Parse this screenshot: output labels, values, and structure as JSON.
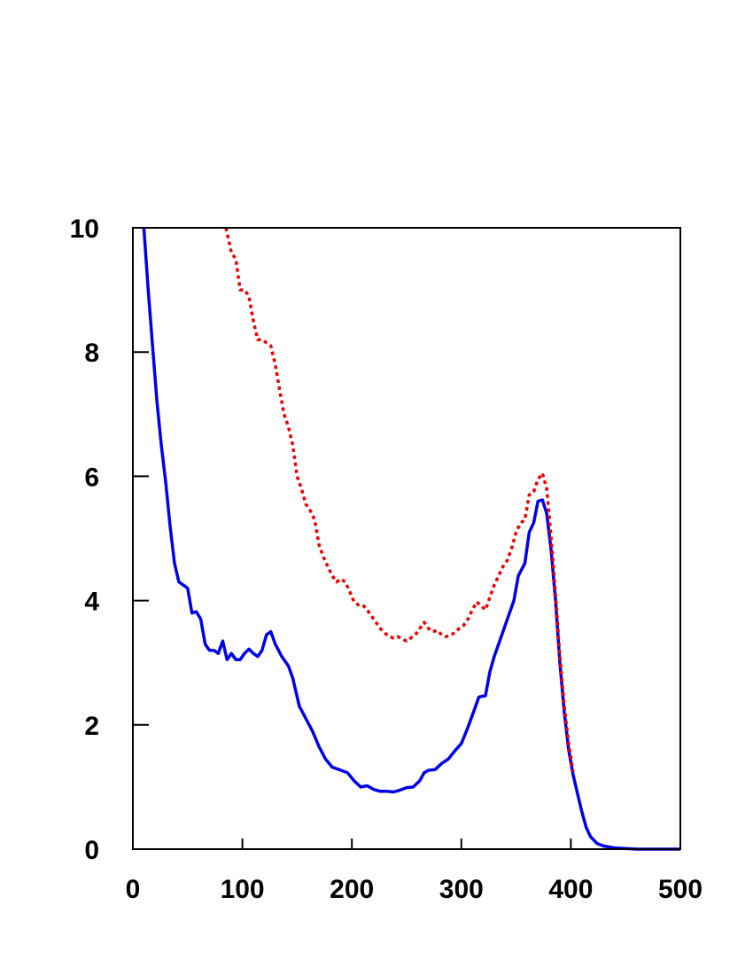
{
  "chart_data": {
    "type": "line",
    "title": "",
    "xlabel": "",
    "ylabel": "",
    "xlim": [
      0,
      500
    ],
    "ylim": [
      0,
      10
    ],
    "x_ticks": [
      0,
      100,
      200,
      300,
      400,
      500
    ],
    "y_ticks": [
      0,
      2,
      4,
      6,
      8,
      10
    ],
    "x_tick_labels": [
      "0",
      "100",
      "200",
      "300",
      "400",
      "500"
    ],
    "y_tick_labels": [
      "0",
      "2",
      "4",
      "6",
      "8",
      "10"
    ],
    "grid": false,
    "legend": "none",
    "series": [
      {
        "color": "#0000ee",
        "style": "solid",
        "points": [
          [
            10,
            10.0
          ],
          [
            14,
            9.0
          ],
          [
            18,
            8.1
          ],
          [
            22,
            7.2
          ],
          [
            26,
            6.5
          ],
          [
            30,
            5.9
          ],
          [
            34,
            5.2
          ],
          [
            38,
            4.6
          ],
          [
            42,
            4.3
          ],
          [
            46,
            4.25
          ],
          [
            50,
            4.2
          ],
          [
            54,
            3.8
          ],
          [
            58,
            3.82
          ],
          [
            62,
            3.7
          ],
          [
            66,
            3.3
          ],
          [
            70,
            3.2
          ],
          [
            74,
            3.2
          ],
          [
            78,
            3.15
          ],
          [
            82,
            3.35
          ],
          [
            86,
            3.05
          ],
          [
            90,
            3.15
          ],
          [
            94,
            3.05
          ],
          [
            98,
            3.05
          ],
          [
            102,
            3.15
          ],
          [
            106,
            3.22
          ],
          [
            110,
            3.15
          ],
          [
            114,
            3.1
          ],
          [
            118,
            3.2
          ],
          [
            122,
            3.45
          ],
          [
            126,
            3.5
          ],
          [
            130,
            3.3
          ],
          [
            136,
            3.1
          ],
          [
            142,
            2.95
          ],
          [
            146,
            2.75
          ],
          [
            152,
            2.3
          ],
          [
            158,
            2.1
          ],
          [
            164,
            1.9
          ],
          [
            170,
            1.65
          ],
          [
            176,
            1.45
          ],
          [
            182,
            1.32
          ],
          [
            190,
            1.27
          ],
          [
            196,
            1.23
          ],
          [
            202,
            1.1
          ],
          [
            208,
            1.0
          ],
          [
            214,
            1.02
          ],
          [
            220,
            0.96
          ],
          [
            226,
            0.93
          ],
          [
            232,
            0.93
          ],
          [
            238,
            0.92
          ],
          [
            244,
            0.95
          ],
          [
            250,
            0.99
          ],
          [
            256,
            1.0
          ],
          [
            262,
            1.1
          ],
          [
            266,
            1.23
          ],
          [
            270,
            1.27
          ],
          [
            276,
            1.28
          ],
          [
            282,
            1.38
          ],
          [
            288,
            1.45
          ],
          [
            294,
            1.58
          ],
          [
            300,
            1.7
          ],
          [
            306,
            1.96
          ],
          [
            312,
            2.25
          ],
          [
            316,
            2.45
          ],
          [
            322,
            2.47
          ],
          [
            326,
            2.85
          ],
          [
            330,
            3.1
          ],
          [
            336,
            3.4
          ],
          [
            342,
            3.7
          ],
          [
            348,
            4.0
          ],
          [
            352,
            4.4
          ],
          [
            358,
            4.6
          ],
          [
            362,
            5.1
          ],
          [
            366,
            5.25
          ],
          [
            370,
            5.6
          ],
          [
            374,
            5.62
          ],
          [
            378,
            5.4
          ],
          [
            382,
            4.8
          ],
          [
            386,
            4.0
          ],
          [
            390,
            3.0
          ],
          [
            394,
            2.2
          ],
          [
            398,
            1.6
          ],
          [
            402,
            1.2
          ],
          [
            406,
            0.9
          ],
          [
            410,
            0.6
          ],
          [
            414,
            0.35
          ],
          [
            418,
            0.2
          ],
          [
            424,
            0.09
          ],
          [
            430,
            0.05
          ],
          [
            440,
            0.02
          ],
          [
            460,
            0.0
          ],
          [
            500,
            0.0
          ]
        ]
      },
      {
        "color": "#ee0000",
        "style": "dotted",
        "points": [
          [
            85,
            10.0
          ],
          [
            90,
            9.6
          ],
          [
            94,
            9.5
          ],
          [
            98,
            9.0
          ],
          [
            102,
            9.0
          ],
          [
            106,
            8.9
          ],
          [
            110,
            8.5
          ],
          [
            114,
            8.2
          ],
          [
            118,
            8.2
          ],
          [
            122,
            8.15
          ],
          [
            126,
            8.1
          ],
          [
            130,
            7.8
          ],
          [
            134,
            7.4
          ],
          [
            138,
            7.0
          ],
          [
            142,
            6.8
          ],
          [
            146,
            6.5
          ],
          [
            150,
            6.0
          ],
          [
            154,
            5.8
          ],
          [
            158,
            5.55
          ],
          [
            162,
            5.45
          ],
          [
            166,
            5.3
          ],
          [
            170,
            4.9
          ],
          [
            174,
            4.7
          ],
          [
            178,
            4.55
          ],
          [
            182,
            4.4
          ],
          [
            186,
            4.3
          ],
          [
            190,
            4.35
          ],
          [
            194,
            4.3
          ],
          [
            198,
            4.15
          ],
          [
            202,
            3.98
          ],
          [
            206,
            3.93
          ],
          [
            210,
            3.93
          ],
          [
            214,
            3.85
          ],
          [
            218,
            3.75
          ],
          [
            222,
            3.65
          ],
          [
            226,
            3.55
          ],
          [
            230,
            3.48
          ],
          [
            234,
            3.42
          ],
          [
            238,
            3.4
          ],
          [
            242,
            3.42
          ],
          [
            246,
            3.38
          ],
          [
            250,
            3.35
          ],
          [
            254,
            3.4
          ],
          [
            258,
            3.45
          ],
          [
            262,
            3.55
          ],
          [
            266,
            3.65
          ],
          [
            270,
            3.55
          ],
          [
            274,
            3.5
          ],
          [
            278,
            3.52
          ],
          [
            282,
            3.45
          ],
          [
            286,
            3.42
          ],
          [
            290,
            3.45
          ],
          [
            294,
            3.48
          ],
          [
            298,
            3.55
          ],
          [
            302,
            3.6
          ],
          [
            306,
            3.7
          ],
          [
            310,
            3.85
          ],
          [
            314,
            3.98
          ],
          [
            318,
            3.92
          ],
          [
            322,
            3.85
          ],
          [
            326,
            4.05
          ],
          [
            330,
            4.25
          ],
          [
            334,
            4.4
          ],
          [
            338,
            4.55
          ],
          [
            342,
            4.65
          ],
          [
            346,
            4.85
          ],
          [
            350,
            5.1
          ],
          [
            354,
            5.25
          ],
          [
            358,
            5.3
          ],
          [
            362,
            5.7
          ],
          [
            366,
            5.75
          ],
          [
            370,
            5.95
          ],
          [
            374,
            6.05
          ],
          [
            378,
            5.8
          ],
          [
            382,
            5.0
          ],
          [
            386,
            4.1
          ],
          [
            390,
            3.1
          ],
          [
            394,
            2.3
          ],
          [
            398,
            1.7
          ],
          [
            402,
            1.25
          ]
        ]
      }
    ]
  }
}
